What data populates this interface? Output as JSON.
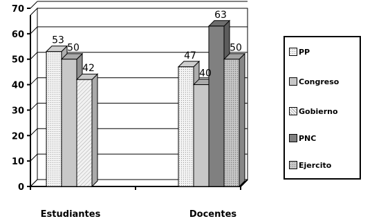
{
  "chart_data": {
    "type": "bar",
    "categories": [
      "Estudiantes",
      "Docentes"
    ],
    "series": [
      {
        "name": "PP",
        "values": [
          53,
          47
        ],
        "color": "#f2f2f2",
        "pattern": "dots"
      },
      {
        "name": "Congreso",
        "values": [
          50,
          40
        ],
        "color": "#c8c8c8",
        "pattern": "solid"
      },
      {
        "name": "Gobierno",
        "values": [
          42,
          null
        ],
        "color": "#ececec",
        "pattern": "diagonal"
      },
      {
        "name": "PNC",
        "values": [
          null,
          63
        ],
        "color": "#808080",
        "pattern": "solid"
      },
      {
        "name": "Ejercito",
        "values": [
          null,
          50
        ],
        "color": "#bdbdbd",
        "pattern": "dots"
      }
    ],
    "ylim": [
      0,
      70
    ],
    "yticks": [
      0,
      10,
      20,
      30,
      40,
      50,
      60,
      70
    ],
    "ytick_labels": [
      "0",
      "10",
      "20",
      "30",
      "40",
      "50",
      "60",
      "70"
    ],
    "title": "",
    "xlabel": "",
    "ylabel": "",
    "grid": true,
    "legend_position": "right"
  },
  "legend": {
    "items": [
      "PP",
      "Congreso",
      "Gobierno",
      "PNC",
      "Ejercito"
    ]
  }
}
